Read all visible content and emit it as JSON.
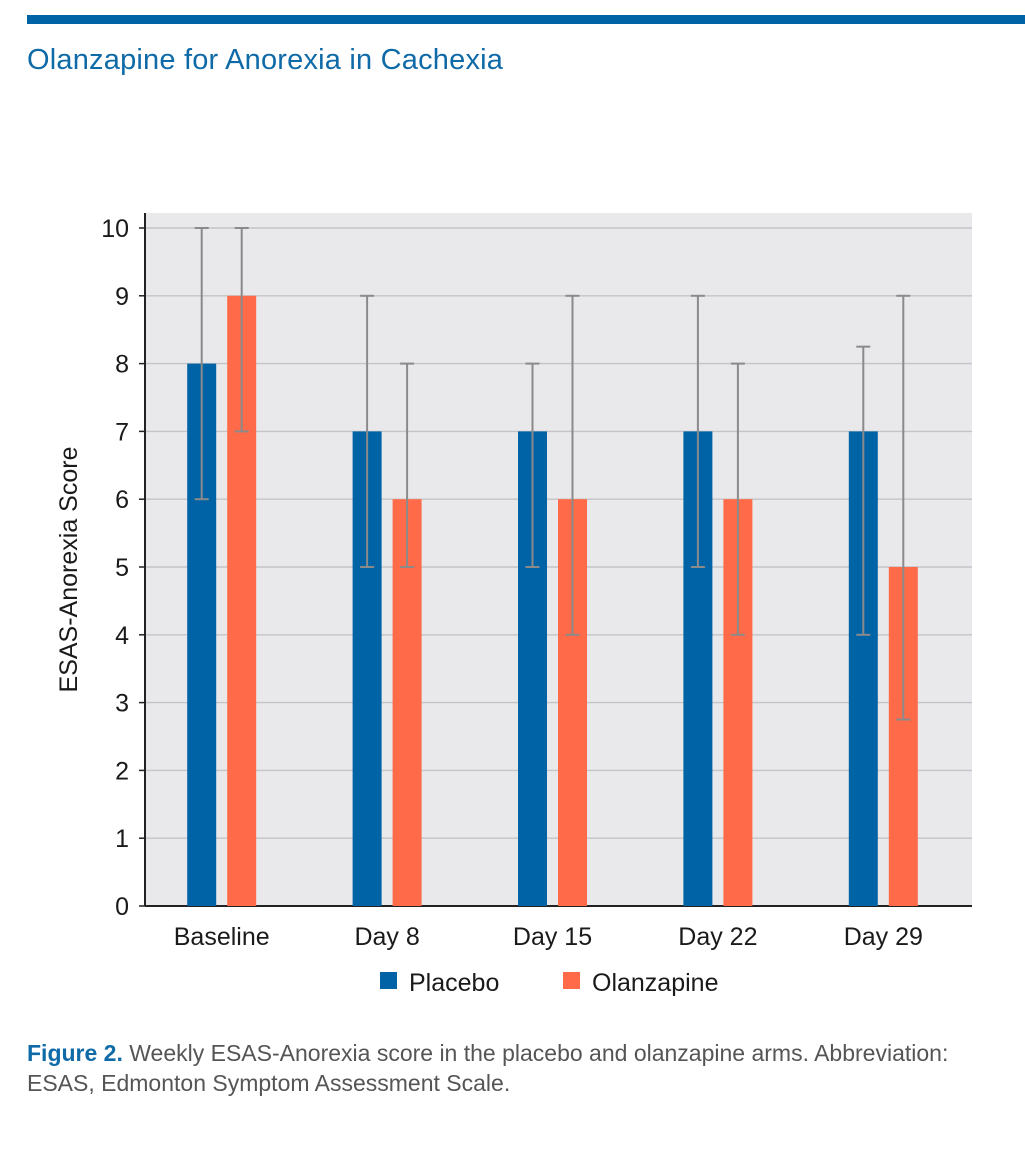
{
  "header": {
    "title": "Olanzapine for Anorexia in Cachexia"
  },
  "colors": {
    "accent": "#0063a6",
    "placebo": "#0063a6",
    "olanzapine": "#ff6a48",
    "plot_background": "#e9e9ec",
    "error_bar": "#8a8a8a"
  },
  "chart_data": {
    "type": "bar",
    "title": "",
    "xlabel": "",
    "ylabel": "ESAS-Anorexia Score",
    "ylim": [
      0,
      10
    ],
    "yticks": [
      0,
      1,
      2,
      3,
      4,
      5,
      6,
      7,
      8,
      9,
      10
    ],
    "grid": true,
    "legend_position": "bottom",
    "categories": [
      "Baseline",
      "Day 8",
      "Day 15",
      "Day 22",
      "Day 29"
    ],
    "series": [
      {
        "name": "Placebo",
        "color": "#0063a6",
        "values": [
          8,
          7,
          7,
          7,
          7
        ],
        "error_low": [
          6,
          5,
          5,
          5,
          4
        ],
        "error_high": [
          10,
          9,
          8,
          9,
          8.25
        ]
      },
      {
        "name": "Olanzapine",
        "color": "#ff6a48",
        "values": [
          9,
          6,
          6,
          6,
          5
        ],
        "error_low": [
          7,
          5,
          4,
          4,
          2.75
        ],
        "error_high": [
          10,
          8,
          9,
          8,
          9
        ]
      }
    ]
  },
  "caption": {
    "label": "Figure 2.",
    "text": " Weekly ESAS-Anorexia score in the placebo and olanzapine arms. Abbreviation: ESAS, Edmonton Symptom Assessment Scale."
  }
}
